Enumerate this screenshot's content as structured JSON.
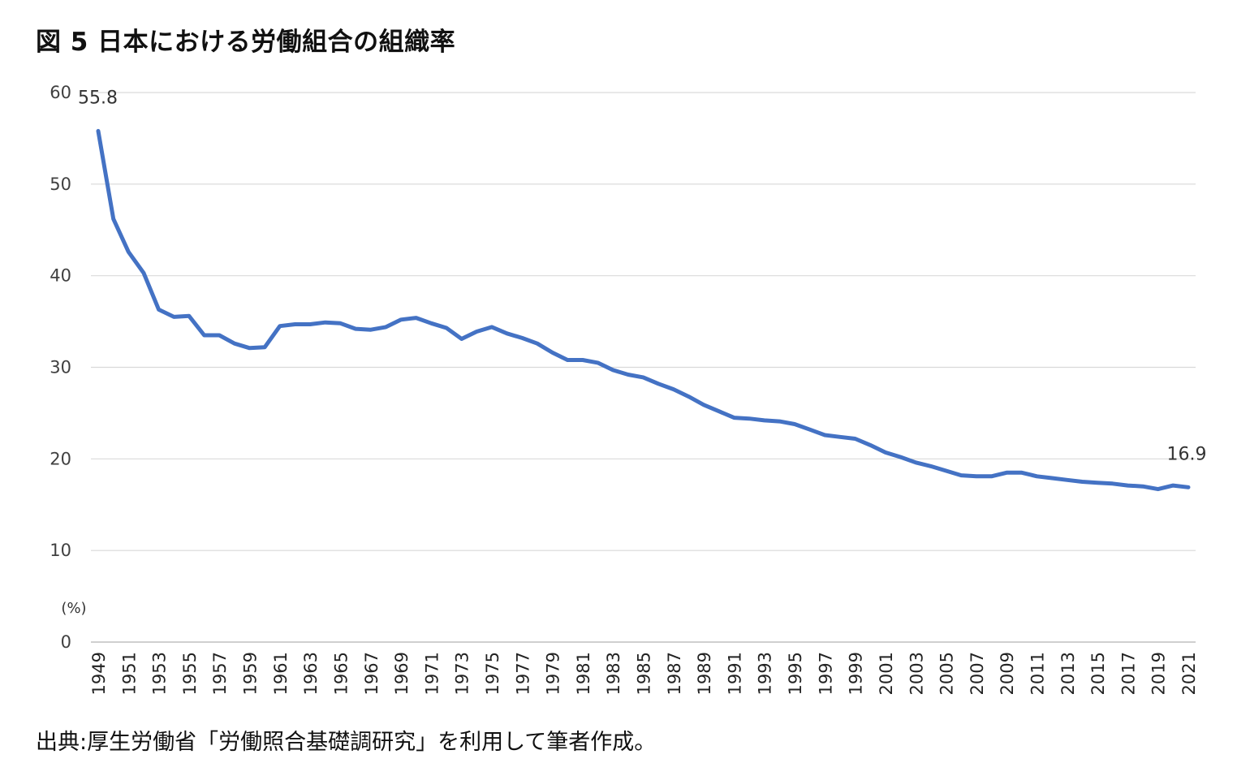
{
  "title": "図 5  日本における労働組合の組織率",
  "source": "出典:厚生労働省「労働照合基礎調研究」を利用して筆者作成。",
  "chart_data": {
    "type": "line",
    "title": "図 5  日本における労働組合の組織率",
    "unit_label": "(%)",
    "ylim": [
      0,
      60
    ],
    "yticks": [
      "0",
      "10",
      "20",
      "30",
      "40",
      "50",
      "60"
    ],
    "x_tick_labels": [
      "1949",
      "1951",
      "1953",
      "1955",
      "1957",
      "1959",
      "1961",
      "1963",
      "1965",
      "1967",
      "1969",
      "1971",
      "1973",
      "1975",
      "1977",
      "1979",
      "1981",
      "1983",
      "1985",
      "1987",
      "1989",
      "1991",
      "1993",
      "1995",
      "1997",
      "1999",
      "2001",
      "2003",
      "2005",
      "2007",
      "2009",
      "2011",
      "2013",
      "2015",
      "2017",
      "2019",
      "2021"
    ],
    "grid": true,
    "line_color": "#4472C4",
    "annotations": [
      {
        "year": 1949,
        "text": "55.8"
      },
      {
        "year": 2021,
        "text": "16.9"
      }
    ],
    "series": [
      {
        "x": [
          1949,
          1950,
          1951,
          1952,
          1953,
          1954,
          1955,
          1956,
          1957,
          1958,
          1959,
          1960,
          1961,
          1962,
          1963,
          1964,
          1965,
          1966,
          1967,
          1968,
          1969,
          1970,
          1971,
          1972,
          1973,
          1974,
          1975,
          1976,
          1977,
          1978,
          1979,
          1980,
          1981,
          1982,
          1983,
          1984,
          1985,
          1986,
          1987,
          1988,
          1989,
          1990,
          1991,
          1992,
          1993,
          1994,
          1995,
          1996,
          1997,
          1998,
          1999,
          2000,
          2001,
          2002,
          2003,
          2004,
          2005,
          2006,
          2007,
          2008,
          2009,
          2010,
          2011,
          2012,
          2013,
          2014,
          2015,
          2016,
          2017,
          2018,
          2019,
          2020,
          2021
        ],
        "values": [
          55.8,
          46.2,
          42.6,
          40.3,
          36.3,
          35.5,
          35.6,
          33.5,
          33.5,
          32.6,
          32.1,
          32.2,
          34.5,
          34.7,
          34.7,
          34.9,
          34.8,
          34.2,
          34.1,
          34.4,
          35.2,
          35.4,
          34.8,
          34.3,
          33.1,
          33.9,
          34.4,
          33.7,
          33.2,
          32.6,
          31.6,
          30.8,
          30.8,
          30.5,
          29.7,
          29.2,
          28.9,
          28.2,
          27.6,
          26.8,
          25.9,
          25.2,
          24.5,
          24.4,
          24.2,
          24.1,
          23.8,
          23.2,
          22.6,
          22.4,
          22.2,
          21.5,
          20.7,
          20.2,
          19.6,
          19.2,
          18.7,
          18.2,
          18.1,
          18.1,
          18.5,
          18.5,
          18.1,
          17.9,
          17.7,
          17.5,
          17.4,
          17.3,
          17.1,
          17.0,
          16.7,
          17.1,
          16.9
        ]
      }
    ]
  }
}
